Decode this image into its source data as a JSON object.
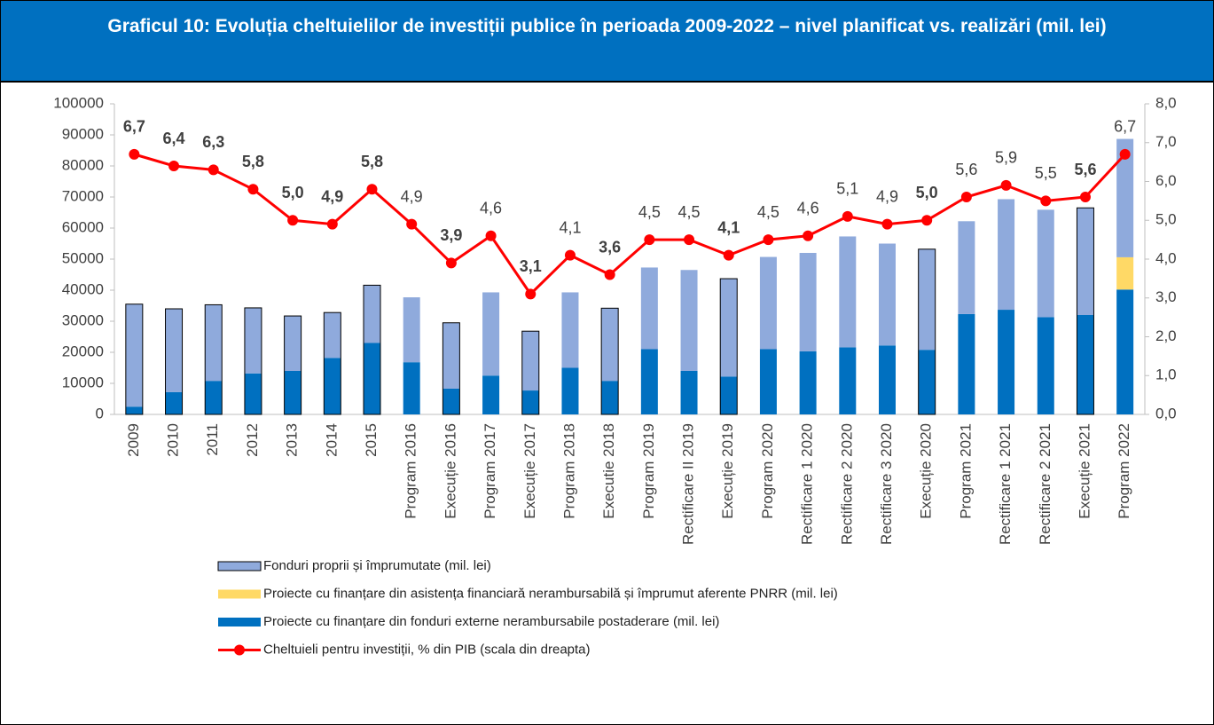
{
  "chart_data": {
    "type": "bar_line",
    "title": "Graficul 10: Evoluția cheltuielilor de investiții publice în perioada 2009-2022 – nivel planificat vs. realizări (mil. lei)",
    "categories": [
      "2009",
      "2010",
      "2011",
      "2012",
      "2013",
      "2014",
      "2015",
      "Program 2016",
      "Execuție 2016",
      "Program 2017",
      "Execuție 2017",
      "Program 2018",
      "Executie 2018",
      "Program 2019",
      "Rectificare II 2019",
      "Execuție 2019",
      "Program 2020",
      "Rectificare 1 2020",
      "Rectificare 2 2020",
      "Rectificare 3 2020",
      "Execuție 2020",
      "Program 2021",
      "Rectificare 1 2021",
      "Rectificare 2 2021",
      "Execuție 2021",
      "Program 2022"
    ],
    "series": [
      {
        "name": "Proiecte cu finanțare din fonduri externe nerambursabile postaderare (mil. lei)",
        "color": "#0070c0",
        "values": [
          2500,
          7200,
          10800,
          13200,
          14000,
          18200,
          23000,
          16800,
          8300,
          12500,
          7700,
          15000,
          10800,
          21000,
          14000,
          12200,
          21000,
          20300,
          21600,
          22200,
          20800,
          32300,
          33700,
          31300,
          32000,
          40200
        ]
      },
      {
        "name": "Proiecte cu finanțare din asistența financiară nerambursabilă și împrumut aferente PNRR (mil. lei)",
        "color": "#ffd966",
        "values": [
          0,
          0,
          0,
          0,
          0,
          0,
          0,
          0,
          0,
          0,
          0,
          0,
          0,
          0,
          0,
          0,
          0,
          0,
          0,
          0,
          0,
          0,
          0,
          0,
          0,
          10400
        ]
      },
      {
        "name": "Fonduri proprii și împrumutate (mil. lei)",
        "color": "#8faadc",
        "values": [
          33000,
          26800,
          24500,
          21100,
          17700,
          14600,
          18600,
          20900,
          21200,
          26800,
          19100,
          24300,
          23400,
          26300,
          32500,
          31500,
          29700,
          31700,
          35700,
          32800,
          32400,
          29900,
          35600,
          34600,
          34500,
          38100
        ]
      },
      {
        "name": "Cheltuieli pentru investiții, % din PIB (scala din dreapta)",
        "color": "#ff0000",
        "axis": "y2",
        "kind": "line",
        "values": [
          6.7,
          6.4,
          6.3,
          5.8,
          5.0,
          4.9,
          5.8,
          4.9,
          3.9,
          4.6,
          3.1,
          4.1,
          3.6,
          4.5,
          4.5,
          4.1,
          4.5,
          4.6,
          5.1,
          4.9,
          5.0,
          5.6,
          5.9,
          5.5,
          5.6,
          6.7
        ],
        "value_labels": [
          "6,7",
          "6,4",
          "6,3",
          "5,8",
          "5,0",
          "4,9",
          "5,8",
          "4,9",
          "3,9",
          "4,6",
          "3,1",
          "4,1",
          "3,6",
          "4,5",
          "4,5",
          "4,1",
          "4,5",
          "4,6",
          "5,1",
          "4,9",
          "5,0",
          "5,6",
          "5,9",
          "5,5",
          "5,6",
          "6,7"
        ]
      }
    ],
    "ylim": [
      0,
      100000
    ],
    "yticks": [
      0,
      10000,
      20000,
      30000,
      40000,
      50000,
      60000,
      70000,
      80000,
      90000,
      100000
    ],
    "y2lim": [
      0,
      8
    ],
    "y2ticks": [
      {
        "value": 0,
        "label": "0,0"
      },
      {
        "value": 1,
        "label": "1,0"
      },
      {
        "value": 2,
        "label": "2,0"
      },
      {
        "value": 3,
        "label": "3,0"
      },
      {
        "value": 4,
        "label": "4,0"
      },
      {
        "value": 5,
        "label": "5,0"
      },
      {
        "value": 6,
        "label": "6,0"
      },
      {
        "value": 7,
        "label": "7,0"
      },
      {
        "value": 8,
        "label": "8,0"
      }
    ],
    "legend": "bottom"
  }
}
